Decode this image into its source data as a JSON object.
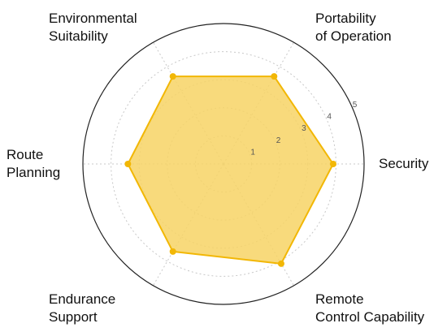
{
  "chart_data": {
    "type": "radar",
    "axes": [
      {
        "label_lines": [
          "Security"
        ],
        "value": 3.9
      },
      {
        "label_lines": [
          "Remote",
          "Control Capability"
        ],
        "value": 4.1
      },
      {
        "label_lines": [
          "Endurance",
          "Support"
        ],
        "value": 3.6
      },
      {
        "label_lines": [
          "Route",
          "Planning"
        ],
        "value": 3.4
      },
      {
        "label_lines": [
          "Environmental",
          "Suitability"
        ],
        "value": 3.6
      },
      {
        "label_lines": [
          "Portability",
          "of Operation"
        ],
        "value": 3.6
      }
    ],
    "radial_ticks": [
      "1",
      "2",
      "3",
      "4",
      "5"
    ],
    "r_range": [
      0,
      5
    ],
    "grid": true,
    "colors": {
      "fill": "#F7D365",
      "stroke": "#F2B705",
      "point": "#F2B705",
      "outer_ring": "#222222",
      "grid": "#C8C8C8",
      "spoke": "#C8C8C8"
    }
  }
}
